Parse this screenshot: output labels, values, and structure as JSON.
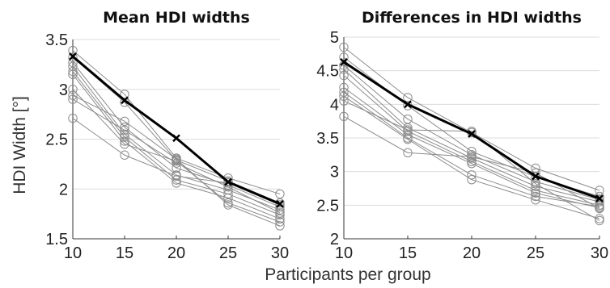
{
  "figure": {
    "ylabel": "HDI Width [°]",
    "xlabel": "Participants per group"
  },
  "chart_data": [
    {
      "type": "line",
      "title": "Mean HDI widths",
      "ylabel": "HDI Width [°]",
      "x": [
        10,
        15,
        20,
        25,
        30
      ],
      "xlim": [
        10,
        30
      ],
      "ylim": [
        1.5,
        3.5
      ],
      "xticks": [
        "10",
        "15",
        "20",
        "25",
        "30"
      ],
      "yticks": [
        "1.5",
        "2",
        "2.5",
        "3",
        "3.5"
      ],
      "grid": true,
      "mean_series": {
        "values": [
          3.33,
          2.89,
          2.51,
          2.07,
          1.85
        ],
        "color": "#000000",
        "marker": "x"
      },
      "series": [
        {
          "values": [
            3.39,
            2.95,
            2.31,
            2.11,
            1.95
          ]
        },
        {
          "values": [
            3.32,
            2.87,
            2.29,
            2.08,
            1.86
          ]
        },
        {
          "values": [
            3.27,
            2.62,
            2.21,
            2.04,
            1.82
          ]
        },
        {
          "values": [
            3.23,
            2.55,
            2.14,
            1.99,
            1.79
          ]
        },
        {
          "values": [
            3.18,
            2.52,
            2.09,
            1.95,
            1.74
          ]
        },
        {
          "values": [
            3.15,
            2.48,
            2.06,
            1.91,
            1.7
          ]
        },
        {
          "values": [
            3.0,
            2.45,
            2.28,
            1.86,
            1.67
          ]
        },
        {
          "values": [
            2.94,
            2.68,
            2.3,
            1.84,
            1.63
          ]
        },
        {
          "values": [
            2.9,
            2.59,
            2.26,
            2.02,
            1.76
          ]
        },
        {
          "values": [
            2.71,
            2.34,
            2.13,
            2.06,
            1.84
          ]
        }
      ]
    },
    {
      "type": "line",
      "title": "Differences in HDI widths",
      "x": [
        10,
        15,
        20,
        25,
        30
      ],
      "xlim": [
        10,
        30
      ],
      "ylim": [
        2,
        5
      ],
      "xticks": [
        "10",
        "15",
        "20",
        "25",
        "30"
      ],
      "yticks": [
        "2",
        "2.5",
        "3",
        "3.5",
        "4",
        "4.5",
        "5"
      ],
      "grid": true,
      "mean_series": {
        "values": [
          4.63,
          4.0,
          3.56,
          2.93,
          2.6
        ],
        "color": "#000000",
        "marker": "x"
      },
      "series": [
        {
          "values": [
            4.85,
            4.1,
            3.58,
            3.05,
            2.72
          ]
        },
        {
          "values": [
            4.7,
            3.98,
            3.3,
            2.92,
            2.63
          ]
        },
        {
          "values": [
            4.58,
            3.78,
            3.25,
            2.85,
            2.58
          ]
        },
        {
          "values": [
            4.52,
            3.65,
            3.2,
            2.78,
            2.55
          ]
        },
        {
          "values": [
            4.43,
            3.6,
            3.15,
            2.72,
            2.5
          ]
        },
        {
          "values": [
            4.25,
            3.55,
            3.12,
            2.68,
            2.46
          ]
        },
        {
          "values": [
            4.18,
            3.5,
            2.95,
            2.63,
            2.48
          ]
        },
        {
          "values": [
            4.12,
            3.48,
            2.88,
            2.58,
            2.3
          ]
        },
        {
          "values": [
            4.05,
            3.62,
            3.6,
            2.82,
            2.27
          ]
        },
        {
          "values": [
            3.82,
            3.28,
            3.22,
            2.98,
            2.45
          ]
        }
      ]
    }
  ]
}
